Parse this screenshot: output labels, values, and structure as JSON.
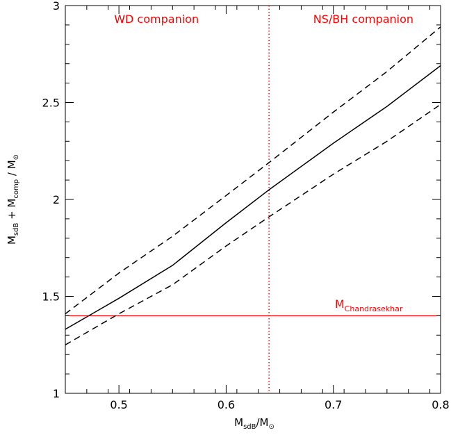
{
  "chart_data": {
    "type": "line",
    "xlim": [
      0.45,
      0.8
    ],
    "ylim": [
      1,
      3
    ],
    "x_ticks": [
      0.5,
      0.6,
      0.7,
      0.8
    ],
    "y_ticks": [
      1,
      1.5,
      2,
      2.5,
      3
    ],
    "x_tick_labels": [
      "0.5",
      "0.6",
      "0.7",
      "0.8"
    ],
    "y_tick_labels": [
      "1",
      "1.5",
      "2",
      "2.5",
      "3"
    ],
    "xlabel": {
      "main": "M",
      "sub": "sdB",
      "rest": "/M",
      "suffix": "⊙"
    },
    "ylabel": {
      "m1": "M",
      "s1": "sdB",
      "plus": " + ",
      "m2": "M",
      "s2": "comp",
      "slash": " / M",
      "sun": "⊙"
    },
    "series": [
      {
        "style": "solid",
        "x": [
          0.45,
          0.5,
          0.55,
          0.6,
          0.64,
          0.7,
          0.75,
          0.8
        ],
        "y": [
          1.33,
          1.49,
          1.66,
          1.88,
          2.05,
          2.29,
          2.48,
          2.69
        ]
      },
      {
        "style": "dashed",
        "x": [
          0.45,
          0.5,
          0.55,
          0.6,
          0.64,
          0.7,
          0.75,
          0.8
        ],
        "y": [
          1.41,
          1.62,
          1.81,
          2.02,
          2.19,
          2.45,
          2.66,
          2.89
        ]
      },
      {
        "style": "dashed",
        "x": [
          0.45,
          0.5,
          0.55,
          0.6,
          0.64,
          0.7,
          0.75,
          0.8
        ],
        "y": [
          1.25,
          1.41,
          1.56,
          1.76,
          1.91,
          2.13,
          2.3,
          2.49
        ]
      }
    ],
    "vline": {
      "x": 0.64,
      "color": "#ff0000",
      "style": "dotted"
    },
    "hline": {
      "y": 1.4,
      "color": "#ff0000",
      "style": "solid"
    },
    "annotations": {
      "wd": {
        "text": "WD companion",
        "x": 0.535,
        "y": 2.91,
        "color": "#ff0000"
      },
      "ns": {
        "text": "NS/BH companion",
        "x": 0.728,
        "y": 2.91,
        "color": "#ff0000"
      },
      "chandra": {
        "main": "M",
        "sub": "Chandrasekhar",
        "x": 0.733,
        "y": 1.44,
        "color": "#ff0000"
      }
    }
  }
}
